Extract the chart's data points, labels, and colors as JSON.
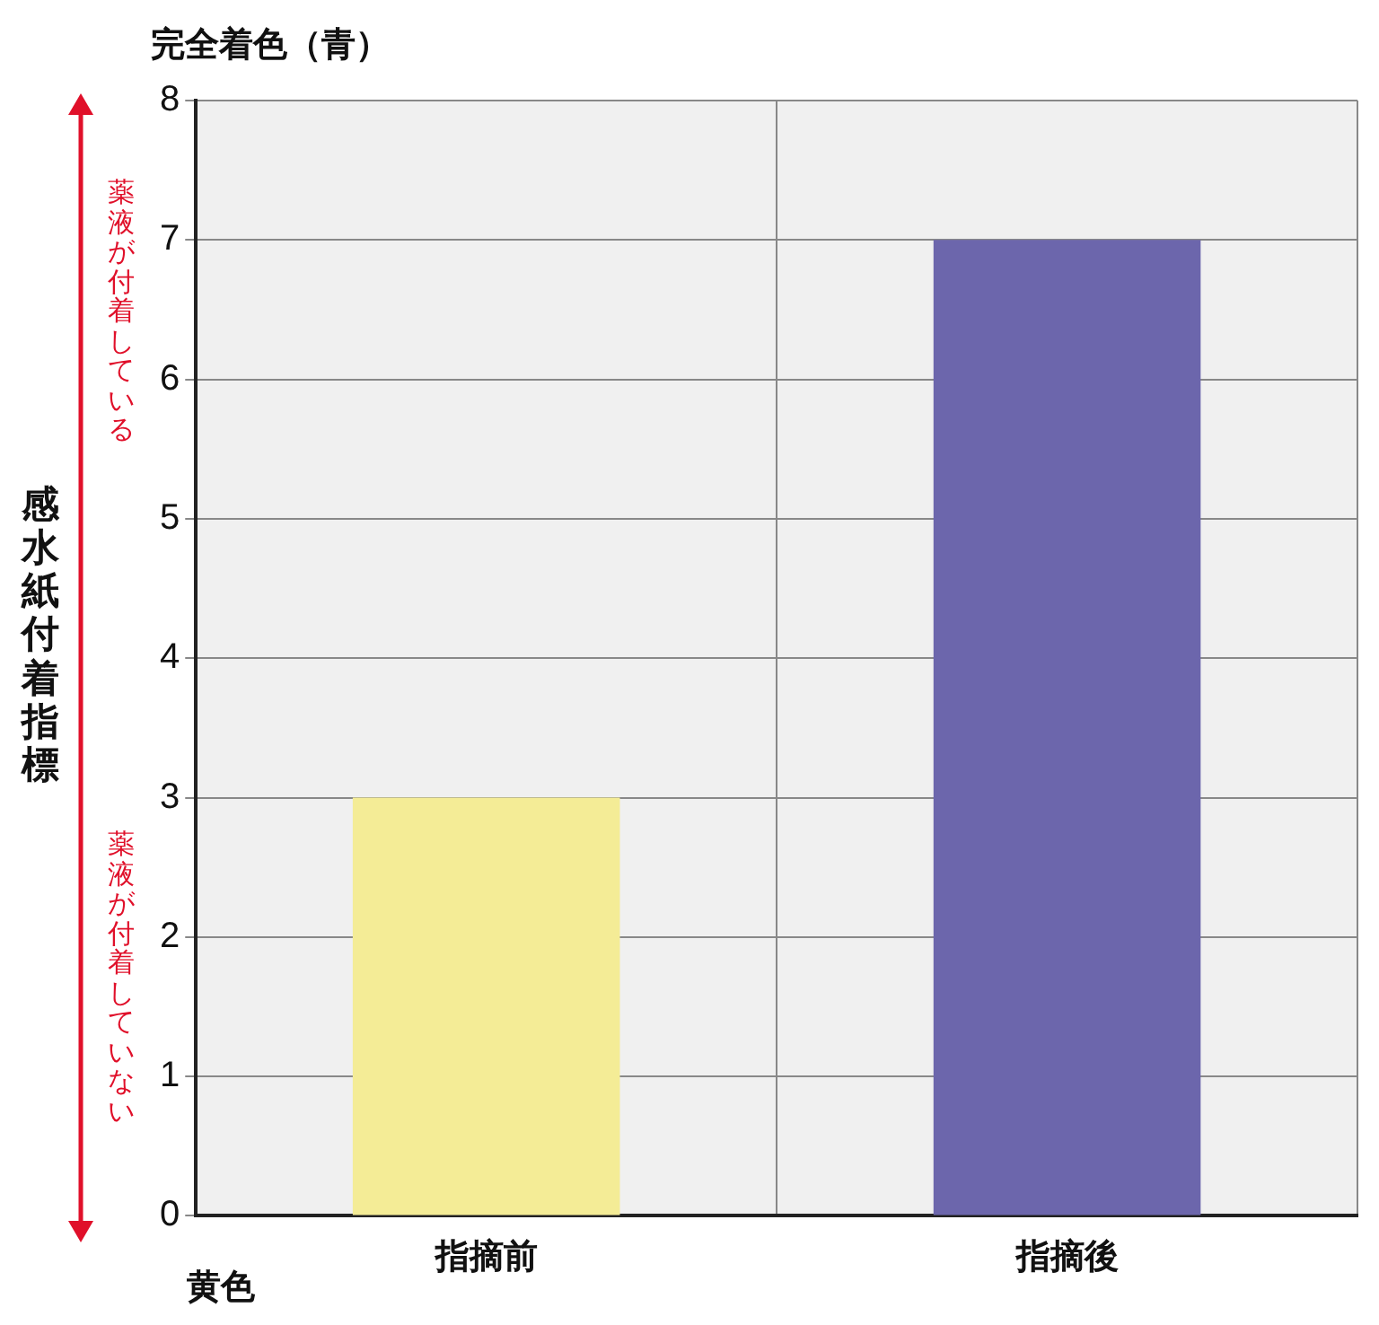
{
  "chart_data": {
    "type": "bar",
    "title": "完全着色（青）",
    "ylabel": "感水紙付着指標",
    "categories": [
      "指摘前",
      "指摘後"
    ],
    "values": [
      3,
      7
    ],
    "colors": [
      "#f4ec96",
      "#6c66ac"
    ],
    "ylim": [
      0,
      8
    ],
    "yticks": [
      0,
      1,
      2,
      3,
      4,
      5,
      6,
      7,
      8
    ],
    "grid": true,
    "legend": false,
    "annotations": [
      "黄色",
      "薬液が付着している",
      "薬液が付着していない"
    ]
  }
}
